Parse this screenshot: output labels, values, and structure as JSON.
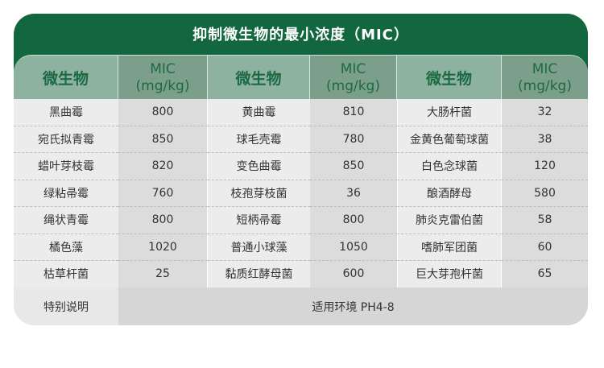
{
  "title": "抑制微生物的最小浓度（MIC）",
  "headers": [
    "微生物",
    "MIC\n(mg/kg)",
    "微生物",
    "MIC\n(mg/kg)",
    "微生物",
    "MIC\n(mg/kg)"
  ],
  "header_mic_line1": "MIC",
  "header_mic_line2": "(mg/kg)",
  "header_organism": "微生物",
  "rows": [
    [
      "黑曲霉",
      "800",
      "黄曲霉",
      "810",
      "大肠杆菌",
      "32"
    ],
    [
      "宛氏拟青霉",
      "850",
      "球毛壳霉",
      "780",
      "金黄色葡萄球菌",
      "38"
    ],
    [
      "蜡叶芽枝霉",
      "820",
      "变色曲霉",
      "850",
      "白色念球菌",
      "120"
    ],
    [
      "绿粘帚霉",
      "760",
      "枝孢芽枝菌",
      "36",
      "酿酒酵母",
      "580"
    ],
    [
      "绳状青霉",
      "800",
      "短柄帚霉",
      "800",
      "肺炎克雷伯菌",
      "58"
    ],
    [
      "橘色藻",
      "1020",
      "普通小球藻",
      "1050",
      "嗜肺军团菌",
      "60"
    ],
    [
      "枯草杆菌",
      "25",
      "黏质红酵母菌",
      "600",
      "巨大芽孢杆菌",
      "65"
    ]
  ],
  "footer": {
    "label": "特别说明",
    "value": "适用环境 PH4-8"
  },
  "colors": {
    "brand_green": "#12673f",
    "header_light": "#8db3a0",
    "header_dark": "#7c9f8b"
  }
}
